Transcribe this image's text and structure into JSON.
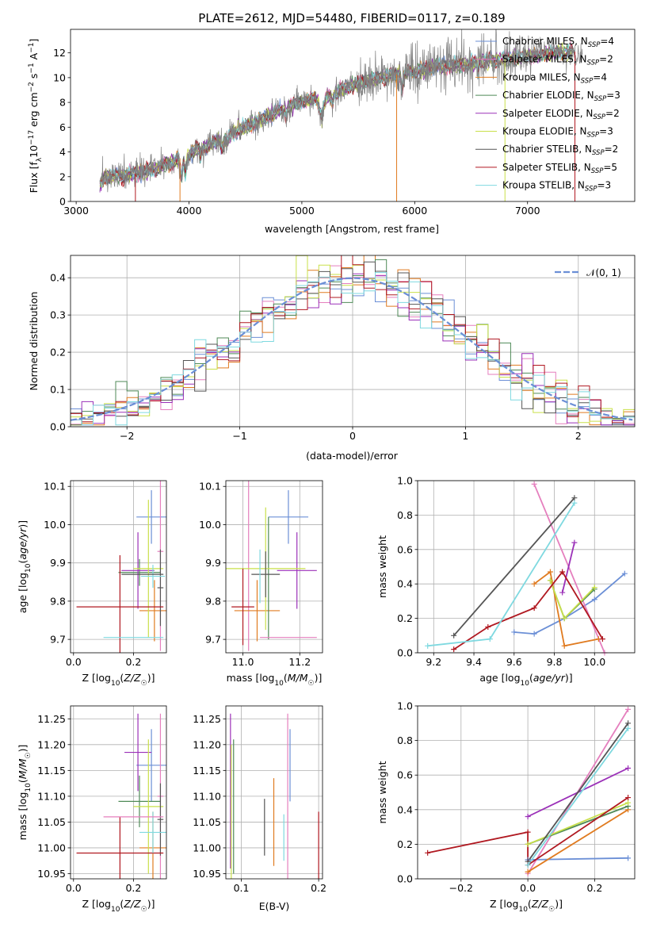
{
  "colors": {
    "Chabrier MILES": "#6b8fd6",
    "Salpeter MILES": "#e57fbe",
    "Kroupa MILES": "#e07b20",
    "Chabrier ELODIE": "#4f8a57",
    "Salpeter ELODIE": "#9b30b8",
    "Kroupa ELODIE": "#c9e04a",
    "Chabrier STELIB": "#555555",
    "Salpeter STELIB": "#b01820",
    "Kroupa STELIB": "#7fd9e0",
    "normal": "#6b8fd6"
  },
  "chart_data": [
    {
      "id": "spectrum",
      "type": "line",
      "title": "PLATE=2612, MJD=54480, FIBERID=0117, z=0.189",
      "xlabel": "wavelength [Angstrom, rest frame]",
      "ylabel": "Flux [f$_\\lambda$10$^{-17}$ erg cm$^{-2}$ s$^{-1}$ A$^{-1}$]",
      "xlim": [
        2950,
        7950
      ],
      "ylim": [
        0,
        13.9
      ],
      "xticks": [
        "3000",
        "4000",
        "5000",
        "6000",
        "7000"
      ],
      "yticks": [
        "0",
        "2",
        "4",
        "6",
        "8",
        "10",
        "12"
      ],
      "legend": [
        {
          "prefix": "Chabrier MILES, N",
          "sub": "SSP",
          "suffix": "=4"
        },
        {
          "prefix": "Salpeter MILES, N",
          "sub": "SSP",
          "suffix": "=2"
        },
        {
          "prefix": "Kroupa MILES, N",
          "sub": "SSP",
          "suffix": "=4"
        },
        {
          "prefix": "Chabrier ELODIE, N",
          "sub": "SSP",
          "suffix": "=3"
        },
        {
          "prefix": "Salpeter ELODIE, N",
          "sub": "SSP",
          "suffix": "=2"
        },
        {
          "prefix": "Kroupa ELODIE, N",
          "sub": "SSP",
          "suffix": "=3"
        },
        {
          "prefix": "Chabrier STELIB, N",
          "sub": "SSP",
          "suffix": "=2"
        },
        {
          "prefix": "Salpeter STELIB, N",
          "sub": "SSP",
          "suffix": "=5"
        },
        {
          "prefix": "Kroupa STELIB, N",
          "sub": "SSP",
          "suffix": "=3"
        }
      ],
      "continuum": [
        [
          3200,
          1.2
        ],
        [
          3250,
          2.0
        ],
        [
          3400,
          2.1
        ],
        [
          3550,
          2.3
        ],
        [
          3700,
          2.6
        ],
        [
          3850,
          3.2
        ],
        [
          3950,
          3.6
        ],
        [
          4050,
          4.1
        ],
        [
          4200,
          4.6
        ],
        [
          4400,
          5.6
        ],
        [
          4600,
          6.4
        ],
        [
          4800,
          7.3
        ],
        [
          5000,
          8.1
        ],
        [
          5200,
          8.4
        ],
        [
          5400,
          9.2
        ],
        [
          5600,
          9.8
        ],
        [
          5800,
          10.2
        ],
        [
          6000,
          10.5
        ],
        [
          6200,
          10.9
        ],
        [
          6400,
          11.0
        ],
        [
          6600,
          11.3
        ],
        [
          6800,
          11.5
        ],
        [
          7000,
          11.7
        ],
        [
          7200,
          12.0
        ],
        [
          7400,
          12.1
        ]
      ]
    },
    {
      "id": "residuals",
      "type": "step",
      "xlabel": "(data-model)/error",
      "ylabel": "Normed distribution",
      "xlim": [
        -2.5,
        2.5
      ],
      "ylim": [
        0,
        0.46
      ],
      "xticks": [
        "−2",
        "−1",
        "0",
        "1",
        "2"
      ],
      "yticks": [
        "0.0",
        "0.1",
        "0.2",
        "0.3",
        "0.4"
      ],
      "legend": "𝒩(0, 1)"
    },
    {
      "id": "age_vs_Z",
      "type": "errorbar",
      "xlabel": "Z [log₁₀(Z/Z☉)]",
      "ylabel": "age  [log₁₀(age/yr)]",
      "xlim": [
        -0.01,
        0.31
      ],
      "ylim": [
        9.665,
        10.115
      ],
      "xticks": [
        "0.0",
        "0.2"
      ],
      "yticks": [
        "9.7",
        "9.8",
        "9.9",
        "10.0",
        "10.1"
      ],
      "points": [
        {
          "model": "Chabrier MILES",
          "x": 0.26,
          "xerr": 0.05,
          "y": 10.02,
          "yerr": 0.07
        },
        {
          "model": "Salpeter MILES",
          "x": 0.29,
          "xerr": 0.01,
          "y": 9.93,
          "yerr": 0.26
        },
        {
          "model": "Kroupa MILES",
          "x": 0.27,
          "xerr": 0.05,
          "y": 9.775,
          "yerr": 0.08
        },
        {
          "model": "Chabrier ELODIE",
          "x": 0.22,
          "xerr": 0.07,
          "y": 9.875,
          "yerr": 0.035
        },
        {
          "model": "Salpeter ELODIE",
          "x": 0.215,
          "xerr": 0.055,
          "y": 9.88,
          "yerr": 0.1
        },
        {
          "model": "Kroupa ELODIE",
          "x": 0.25,
          "xerr": 0.05,
          "y": 9.885,
          "yerr": 0.18
        },
        {
          "model": "Chabrier STELIB",
          "x": 0.29,
          "xerr": 0.01,
          "y": 9.835,
          "yerr": 0.1
        },
        {
          "model": "Salpeter STELIB",
          "x": 0.155,
          "xerr": 0.145,
          "y": 9.785,
          "yerr": 0.135
        },
        {
          "model": "Kroupa STELIB",
          "x": 0.265,
          "xerr": 0.04,
          "y": 9.865,
          "yerr": 0.03
        },
        {
          "model": "Kroupa STELIB",
          "x": 0.2,
          "xerr": 0.1,
          "y": 9.705,
          "yerr": 0.0
        },
        {
          "model": "Chabrier STELIB",
          "x": 0.23,
          "xerr": 0.07,
          "y": 9.87,
          "yerr": 0.0
        }
      ]
    },
    {
      "id": "age_vs_mass",
      "type": "errorbar",
      "xlabel": "mass [log₁₀(M/M☉)]",
      "ylabel": "",
      "xlim": [
        10.94,
        11.28
      ],
      "ylim": [
        9.665,
        10.115
      ],
      "xticks": [
        "11.0",
        "11.2"
      ],
      "yticks": [
        "9.7",
        "9.8",
        "9.9",
        "10.0",
        "10.1"
      ],
      "points": [
        {
          "model": "Chabrier MILES",
          "x": 11.16,
          "xerr": 0.07,
          "y": 10.02,
          "yerr": 0.07
        },
        {
          "model": "Salpeter MILES",
          "x": 11.02,
          "xerr": 0.0,
          "y": 9.93,
          "yerr": 0.26
        },
        {
          "model": "Kroupa MILES",
          "x": 11.05,
          "xerr": 0.08,
          "y": 9.775,
          "yerr": 0.08
        },
        {
          "model": "Chabrier ELODIE",
          "x": 11.09,
          "xerr": 0.0,
          "y": 9.86,
          "yerr": 0.16
        },
        {
          "model": "Salpeter ELODIE",
          "x": 11.19,
          "xerr": 0.07,
          "y": 9.88,
          "yerr": 0.1
        },
        {
          "model": "Kroupa ELODIE",
          "x": 11.08,
          "xerr": 0.14,
          "y": 9.885,
          "yerr": 0.16
        },
        {
          "model": "Chabrier STELIB",
          "x": 11.08,
          "xerr": 0.05,
          "y": 9.87,
          "yerr": 0.06
        },
        {
          "model": "Salpeter STELIB",
          "x": 11.0,
          "xerr": 0.04,
          "y": 9.785,
          "yerr": 0.1
        },
        {
          "model": "Kroupa STELIB",
          "x": 11.06,
          "xerr": 0.0,
          "y": 9.865,
          "yerr": 0.07
        },
        {
          "model": "Salpeter MILES",
          "x": 11.16,
          "xerr": 0.1,
          "y": 9.705,
          "yerr": 0.0
        }
      ]
    },
    {
      "id": "weight_vs_age",
      "type": "line",
      "xlabel": "age  [log₁₀(age/yr)]",
      "ylabel": "mass weight",
      "xlim": [
        9.12,
        10.2
      ],
      "ylim": [
        0,
        1
      ],
      "xticks": [
        "9.2",
        "9.4",
        "9.6",
        "9.8",
        "10.0"
      ],
      "yticks": [
        "0.0",
        "0.2",
        "0.4",
        "0.6",
        "0.8",
        "1.0"
      ],
      "series": [
        {
          "model": "Chabrier MILES",
          "x": [
            9.6,
            9.7,
            9.85,
            10.0,
            10.15
          ],
          "y": [
            0.12,
            0.11,
            0.2,
            0.31,
            0.46
          ]
        },
        {
          "model": "Salpeter MILES",
          "x": [
            9.7,
            10.05
          ],
          "y": [
            0.98,
            0.0
          ]
        },
        {
          "model": "Kroupa MILES",
          "x": [
            9.7,
            9.78,
            9.85,
            10.02
          ],
          "y": [
            0.4,
            0.47,
            0.04,
            0.08
          ]
        },
        {
          "model": "Chabrier ELODIE",
          "x": [
            9.78,
            9.85,
            10.0
          ],
          "y": [
            0.42,
            0.2,
            0.37
          ]
        },
        {
          "model": "Salpeter ELODIE",
          "x": [
            9.84,
            9.9
          ],
          "y": [
            0.35,
            0.64
          ]
        },
        {
          "model": "Kroupa ELODIE",
          "x": [
            9.78,
            9.85,
            10.0
          ],
          "y": [
            0.42,
            0.2,
            0.38
          ]
        },
        {
          "model": "Chabrier STELIB",
          "x": [
            9.3,
            9.9
          ],
          "y": [
            0.1,
            0.9
          ]
        },
        {
          "model": "Salpeter STELIB",
          "x": [
            9.3,
            9.47,
            9.7,
            9.84,
            10.04
          ],
          "y": [
            0.02,
            0.15,
            0.26,
            0.47,
            0.08
          ]
        },
        {
          "model": "Kroupa STELIB",
          "x": [
            9.17,
            9.48,
            9.9
          ],
          "y": [
            0.04,
            0.08,
            0.87
          ]
        }
      ]
    },
    {
      "id": "mass_vs_Z",
      "type": "errorbar",
      "xlabel": "Z [log₁₀(Z/Z☉)]",
      "ylabel": "mass [log₁₀(M/M☉)]",
      "xlim": [
        -0.01,
        0.31
      ],
      "ylim": [
        10.94,
        11.275
      ],
      "xticks": [
        "0.0",
        "0.2"
      ],
      "yticks": [
        "10.95",
        "11.00",
        "11.05",
        "11.10",
        "11.15",
        "11.20",
        "11.25"
      ],
      "points": [
        {
          "model": "Chabrier MILES",
          "x": 0.26,
          "xerr": 0.05,
          "y": 11.16,
          "yerr": 0.07
        },
        {
          "model": "Salpeter MILES",
          "x": 0.29,
          "xerr": 0.01,
          "y": 11.1,
          "yerr": 0.16
        },
        {
          "model": "Kroupa MILES",
          "x": 0.265,
          "xerr": 0.045,
          "y": 11.0,
          "yerr": 0.07
        },
        {
          "model": "Chabrier ELODIE",
          "x": 0.22,
          "xerr": 0.07,
          "y": 11.09,
          "yerr": 0.05
        },
        {
          "model": "Salpeter ELODIE",
          "x": 0.215,
          "xerr": 0.045,
          "y": 11.185,
          "yerr": 0.075
        },
        {
          "model": "Kroupa ELODIE",
          "x": 0.25,
          "xerr": 0.05,
          "y": 11.08,
          "yerr": 0.13
        },
        {
          "model": "Chabrier STELIB",
          "x": 0.29,
          "xerr": 0.01,
          "y": 11.055,
          "yerr": 0.07
        },
        {
          "model": "Salpeter STELIB",
          "x": 0.155,
          "xerr": 0.145,
          "y": 10.99,
          "yerr": 0.07
        },
        {
          "model": "Kroupa STELIB",
          "x": 0.265,
          "xerr": 0.045,
          "y": 11.03,
          "yerr": 0.04
        },
        {
          "model": "Salpeter MILES",
          "x": 0.2,
          "xerr": 0.1,
          "y": 11.06,
          "yerr": 0.0
        }
      ]
    },
    {
      "id": "mass_vs_ebv",
      "type": "errorbar",
      "xlabel": "E(B-V)",
      "ylabel": "",
      "xlim": [
        0.08,
        0.205
      ],
      "ylim": [
        10.94,
        11.275
      ],
      "xticks": [
        "0.1",
        "0.2"
      ],
      "yticks": [
        "10.95",
        "11.00",
        "11.05",
        "11.10",
        "11.15",
        "11.20",
        "11.25"
      ],
      "points": [
        {
          "model": "Chabrier MILES",
          "x": 0.163,
          "xerr": 0.0,
          "y": 11.16,
          "yerr": 0.07
        },
        {
          "model": "Salpeter MILES",
          "x": 0.16,
          "xerr": 0.0,
          "y": 11.1,
          "yerr": 0.16
        },
        {
          "model": "Kroupa MILES",
          "x": 0.142,
          "xerr": 0.0,
          "y": 11.05,
          "yerr": 0.085
        },
        {
          "model": "Chabrier ELODIE",
          "x": 0.09,
          "xerr": 0.0,
          "y": 11.08,
          "yerr": 0.13
        },
        {
          "model": "Salpeter ELODIE",
          "x": 0.086,
          "xerr": 0.0,
          "y": 11.11,
          "yerr": 0.15
        },
        {
          "model": "Kroupa ELODIE",
          "x": 0.087,
          "xerr": 0.0,
          "y": 11.07,
          "yerr": 0.13
        },
        {
          "model": "Chabrier STELIB",
          "x": 0.13,
          "xerr": 0.0,
          "y": 11.04,
          "yerr": 0.055
        },
        {
          "model": "Salpeter STELIB",
          "x": 0.2,
          "xerr": 0.0,
          "y": 11.005,
          "yerr": 0.065
        },
        {
          "model": "Kroupa STELIB",
          "x": 0.155,
          "xerr": 0.0,
          "y": 11.02,
          "yerr": 0.045
        }
      ]
    },
    {
      "id": "weight_vs_Z",
      "type": "line",
      "xlabel": "Z [log₁₀(Z/Z☉)]",
      "ylabel": "mass weight",
      "xlim": [
        -0.33,
        0.32
      ],
      "ylim": [
        0,
        1
      ],
      "xticks": [
        "−0.2",
        "0.0",
        "0.2"
      ],
      "yticks": [
        "0.0",
        "0.2",
        "0.4",
        "0.6",
        "0.8",
        "1.0"
      ],
      "series": [
        {
          "model": "Chabrier MILES",
          "x": [
            0.0,
            0.3
          ],
          "y": [
            0.11,
            0.12
          ]
        },
        {
          "model": "Salpeter MILES",
          "x": [
            0.0,
            0.3
          ],
          "y": [
            0.03,
            0.98
          ]
        },
        {
          "model": "Kroupa MILES",
          "x": [
            0.0,
            0.3
          ],
          "y": [
            0.04,
            0.4
          ]
        },
        {
          "model": "Chabrier ELODIE",
          "x": [
            0.0,
            0.3
          ],
          "y": [
            0.2,
            0.42
          ]
        },
        {
          "model": "Salpeter ELODIE",
          "x": [
            0.0,
            0.3
          ],
          "y": [
            0.36,
            0.64
          ]
        },
        {
          "model": "Kroupa ELODIE",
          "x": [
            0.0,
            0.3
          ],
          "y": [
            0.2,
            0.44
          ]
        },
        {
          "model": "Chabrier STELIB",
          "x": [
            0.0,
            0.3
          ],
          "y": [
            0.1,
            0.9
          ]
        },
        {
          "model": "Salpeter STELIB",
          "x": [
            -0.3,
            0.0,
            0.0,
            0.3
          ],
          "y": [
            0.15,
            0.27,
            0.08,
            0.47
          ]
        },
        {
          "model": "Kroupa STELIB",
          "x": [
            0.0,
            0.3
          ],
          "y": [
            0.08,
            0.87
          ]
        }
      ]
    }
  ]
}
